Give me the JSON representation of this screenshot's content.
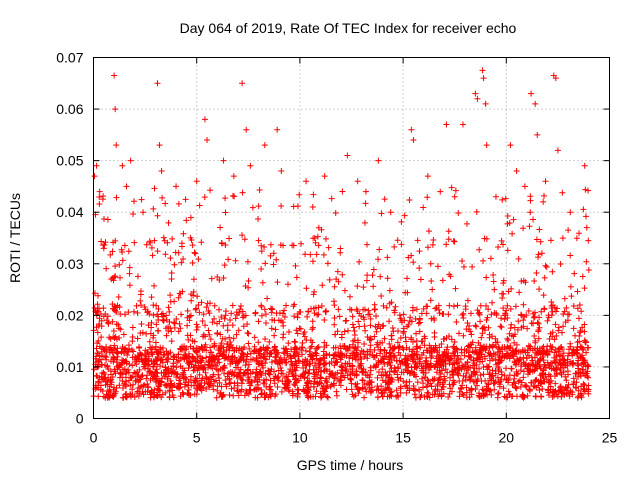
{
  "chart_data": {
    "type": "scatter",
    "title": "Day 064 of 2019, Rate Of TEC Index for receiver echo",
    "xlabel": "GPS time / hours",
    "ylabel": "ROTI / TECUs",
    "xlim": [
      0,
      25
    ],
    "ylim": [
      0,
      0.07
    ],
    "xticks": [
      0,
      5,
      10,
      15,
      20,
      25
    ],
    "xtick_labels": [
      "0",
      "5",
      "10",
      "15",
      "20",
      "25"
    ],
    "yticks": [
      0,
      0.01,
      0.02,
      0.03,
      0.04,
      0.05,
      0.06,
      0.07
    ],
    "ytick_labels": [
      "0",
      "0.01",
      "0.02",
      "0.03",
      "0.04",
      "0.05",
      "0.06",
      "0.07"
    ],
    "grid": true,
    "marker": "+",
    "color": "#ff0000",
    "series": [
      {
        "name": "ROTI",
        "x_range": [
          0,
          24
        ],
        "points": [
          [
            0.05,
            0.047
          ],
          [
            0.15,
            0.049
          ],
          [
            0.3,
            0.044
          ],
          [
            0.5,
            0.033
          ],
          [
            1.0,
            0.0665
          ],
          [
            1.05,
            0.06
          ],
          [
            1.1,
            0.053
          ],
          [
            1.4,
            0.049
          ],
          [
            1.6,
            0.045
          ],
          [
            1.8,
            0.05
          ],
          [
            2.4,
            0.04
          ],
          [
            3.1,
            0.065
          ],
          [
            3.2,
            0.053
          ],
          [
            3.3,
            0.048
          ],
          [
            4.0,
            0.045
          ],
          [
            5.0,
            0.046
          ],
          [
            5.4,
            0.058
          ],
          [
            5.5,
            0.054
          ],
          [
            6.3,
            0.05
          ],
          [
            6.8,
            0.047
          ],
          [
            7.2,
            0.065
          ],
          [
            7.4,
            0.056
          ],
          [
            7.6,
            0.049
          ],
          [
            8.3,
            0.053
          ],
          [
            8.9,
            0.056
          ],
          [
            9.1,
            0.048
          ],
          [
            10.3,
            0.046
          ],
          [
            11.2,
            0.047
          ],
          [
            12.3,
            0.051
          ],
          [
            12.8,
            0.046
          ],
          [
            13.2,
            0.044
          ],
          [
            13.8,
            0.05
          ],
          [
            14.4,
            0.04
          ],
          [
            15.4,
            0.056
          ],
          [
            15.5,
            0.054
          ],
          [
            16.2,
            0.047
          ],
          [
            16.8,
            0.044
          ],
          [
            17.1,
            0.057
          ],
          [
            17.5,
            0.043
          ],
          [
            17.9,
            0.057
          ],
          [
            18.5,
            0.063
          ],
          [
            18.6,
            0.062
          ],
          [
            18.85,
            0.0675
          ],
          [
            18.9,
            0.066
          ],
          [
            19.0,
            0.061
          ],
          [
            19.05,
            0.053
          ],
          [
            19.5,
            0.043
          ],
          [
            20.2,
            0.053
          ],
          [
            20.5,
            0.048
          ],
          [
            20.9,
            0.045
          ],
          [
            21.2,
            0.063
          ],
          [
            21.4,
            0.061
          ],
          [
            21.5,
            0.055
          ],
          [
            21.9,
            0.046
          ],
          [
            22.3,
            0.0665
          ],
          [
            22.4,
            0.066
          ],
          [
            22.5,
            0.052
          ],
          [
            23.1,
            0.04
          ],
          [
            23.8,
            0.049
          ],
          [
            23.9,
            0.037
          ]
        ]
      }
    ]
  }
}
